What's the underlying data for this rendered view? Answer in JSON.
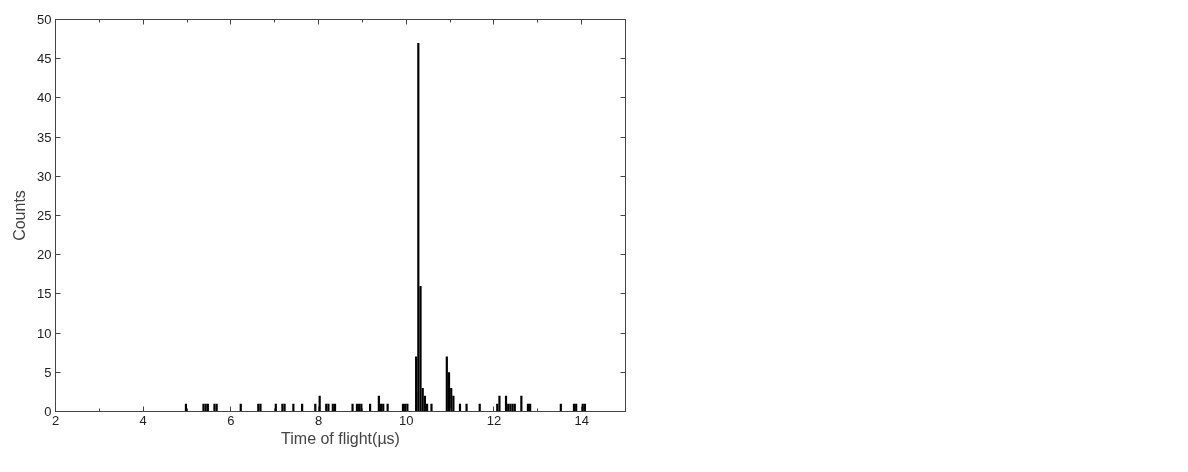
{
  "chart_data": {
    "type": "histogram",
    "xlabel": "Time of flight(µs)",
    "ylabel": "Counts",
    "color": "#000000",
    "bins": [
      4.95,
      5.0,
      5.35,
      5.4,
      5.45,
      5.5,
      5.6,
      5.65,
      5.7,
      6.2,
      6.25,
      6.6,
      6.65,
      6.7,
      7.0,
      7.05,
      7.15,
      7.2,
      7.25,
      7.4,
      7.45,
      7.6,
      7.65,
      7.9,
      7.95,
      8.0,
      8.05,
      8.15,
      8.2,
      8.25,
      8.3,
      8.35,
      8.4,
      8.75,
      8.8,
      8.85,
      8.9,
      8.95,
      9.0,
      9.15,
      9.2,
      9.35,
      9.4,
      9.45,
      9.5,
      9.55,
      9.6,
      9.9,
      9.95,
      10.0,
      10.05,
      10.2,
      10.25,
      10.3,
      10.35,
      10.4,
      10.45,
      10.5,
      10.55,
      10.6,
      10.9,
      10.95,
      11.0,
      11.05,
      11.1,
      11.2,
      11.25,
      11.35,
      11.4,
      11.65,
      11.7,
      12.05,
      12.1,
      12.15,
      12.25,
      12.3,
      12.35,
      12.4,
      12.45,
      12.5,
      12.6,
      12.65,
      12.75,
      12.8,
      12.85,
      13.5,
      13.55,
      13.8,
      13.85,
      13.9,
      14.0,
      14.05,
      14.1
    ],
    "values": [
      1,
      0,
      1,
      1,
      1,
      0,
      1,
      1,
      0,
      1,
      0,
      1,
      1,
      0,
      1,
      0,
      1,
      1,
      0,
      1,
      0,
      1,
      0,
      1,
      0,
      2,
      0,
      1,
      1,
      0,
      1,
      1,
      0,
      1,
      0,
      1,
      1,
      1,
      0,
      1,
      0,
      2,
      1,
      1,
      0,
      1,
      0,
      1,
      1,
      1,
      0,
      7,
      47,
      16,
      3,
      2,
      1,
      0,
      1,
      0,
      7,
      5,
      3,
      2,
      0,
      1,
      0,
      1,
      0,
      1,
      0,
      1,
      2,
      0,
      2,
      1,
      1,
      1,
      1,
      0,
      2,
      0,
      1,
      1,
      0,
      1,
      0,
      1,
      1,
      0,
      1,
      1
    ],
    "xlim": [
      2,
      15
    ],
    "ylim": [
      0,
      50
    ],
    "xticks": [
      2,
      {
        "value": 3,
        "label": null
      },
      4,
      {
        "value": 5,
        "label": null
      },
      6,
      {
        "value": 7,
        "label": null
      },
      8,
      {
        "value": 9,
        "label": null
      },
      10,
      {
        "value": 11,
        "label": null
      },
      12,
      {
        "value": 13,
        "label": null
      },
      14
    ],
    "yticks": [
      0,
      5,
      10,
      15,
      20,
      25,
      30,
      35,
      40,
      45,
      50
    ]
  }
}
